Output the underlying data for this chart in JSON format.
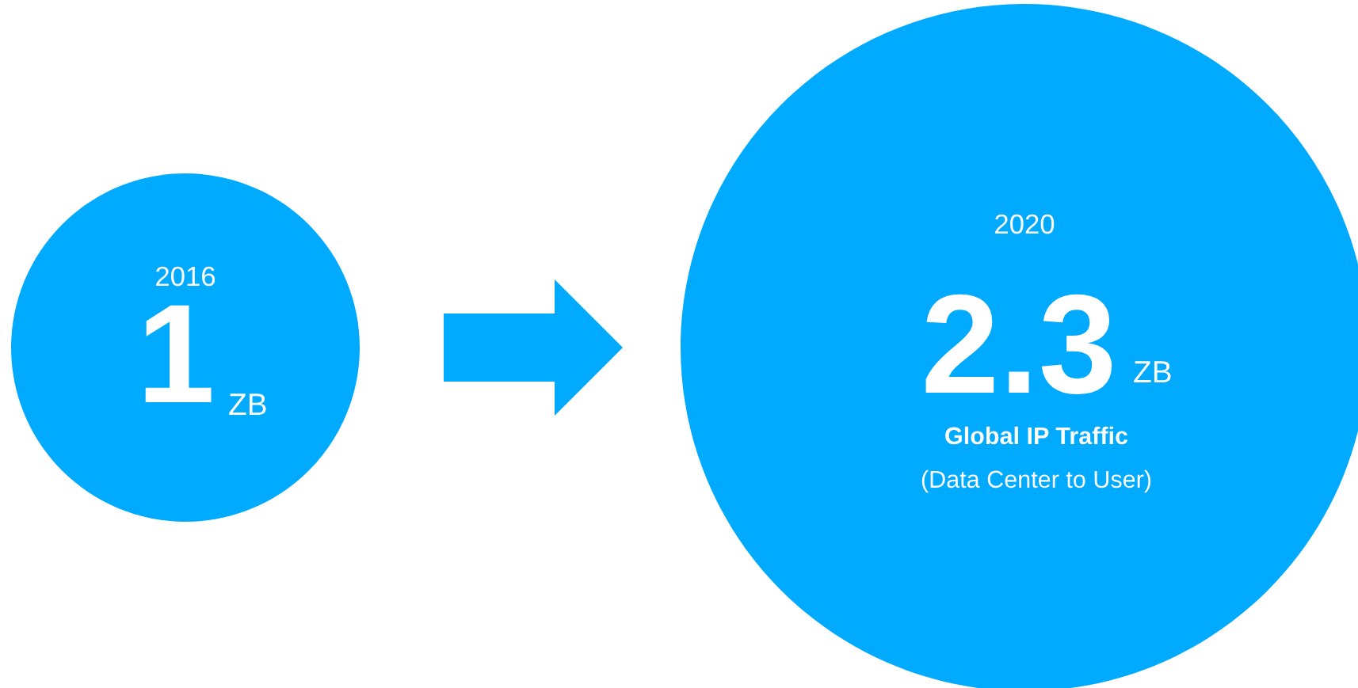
{
  "chart_data": {
    "type": "other",
    "title": "Global IP Traffic",
    "subtitle": "(Data Center to User)",
    "categories": [
      "2016",
      "2020"
    ],
    "values": [
      1,
      2.3
    ],
    "data_labels": true,
    "annotations": [
      "ZB",
      "ZB"
    ],
    "color": "#00aaff"
  }
}
